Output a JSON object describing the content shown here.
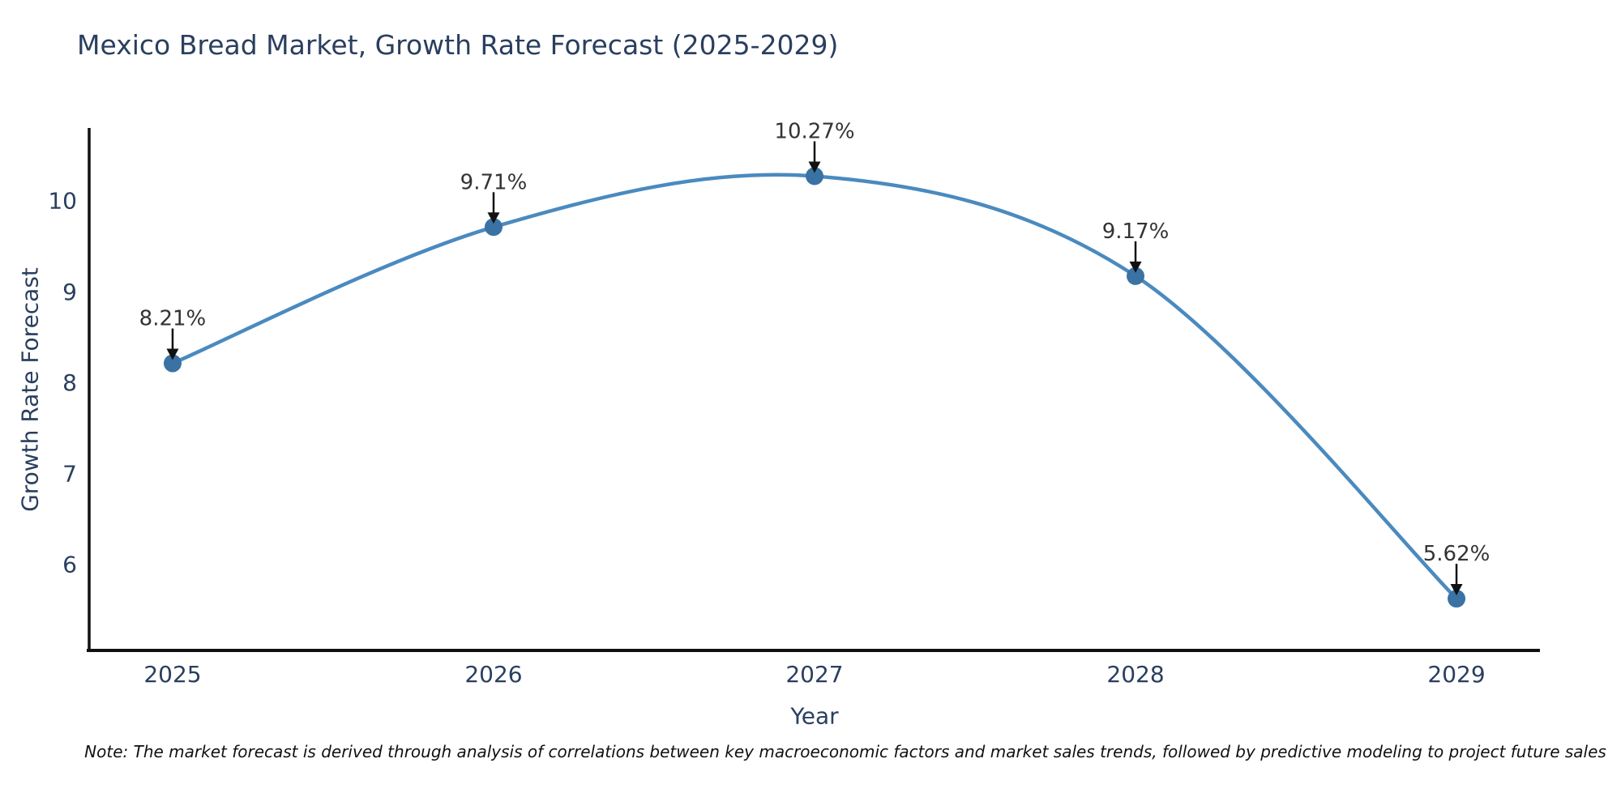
{
  "chart": {
    "note": "Note: The market forecast is derived through analysis of correlations between key macroeconomic factors and market sales trends, followed by predictive modeling to project future sales"
  },
  "chart_data": {
    "type": "line",
    "title": "Mexico Bread Market, Growth Rate Forecast (2025-2029)",
    "xlabel": "Year",
    "ylabel": "Growth Rate Forecast",
    "x": [
      2025,
      2026,
      2027,
      2028,
      2029
    ],
    "values": [
      8.21,
      9.71,
      10.27,
      9.17,
      5.62
    ],
    "labels": [
      "8.21%",
      "9.71%",
      "10.27%",
      "9.17%",
      "5.62%"
    ],
    "x_ticks": [
      "2025",
      "2026",
      "2027",
      "2028",
      "2029"
    ],
    "y_ticks": [
      6,
      7,
      8,
      9,
      10
    ],
    "xlim": [
      2024.74,
      2029.26
    ],
    "ylim": [
      5.05,
      10.8
    ],
    "grid": false,
    "legend": "none",
    "line_shape": "spline",
    "colors": {
      "line": "#4A8ABF",
      "marker": "#3A72A3",
      "axis": "#111111",
      "tick_text": "#2a3f5f",
      "annotation_text": "#333333",
      "arrow": "#111111"
    }
  }
}
